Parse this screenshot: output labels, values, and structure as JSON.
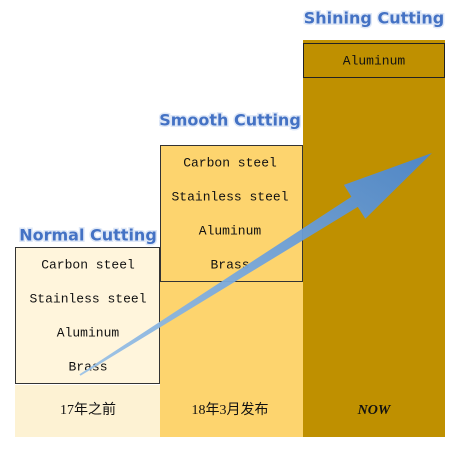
{
  "columns": [
    {
      "title": "Normal Cutting",
      "materials": [
        "Carbon steel",
        "Stainless steel",
        "Aluminum",
        "Brass"
      ],
      "label": "17年之前"
    },
    {
      "title": "Smooth Cutting",
      "materials": [
        "Carbon steel",
        "Stainless steel",
        "Aluminum",
        "Brass"
      ],
      "label": "18年3月发布"
    },
    {
      "title": "Shining Cutting",
      "materials": [
        "Aluminum"
      ],
      "label": "NOW"
    }
  ]
}
